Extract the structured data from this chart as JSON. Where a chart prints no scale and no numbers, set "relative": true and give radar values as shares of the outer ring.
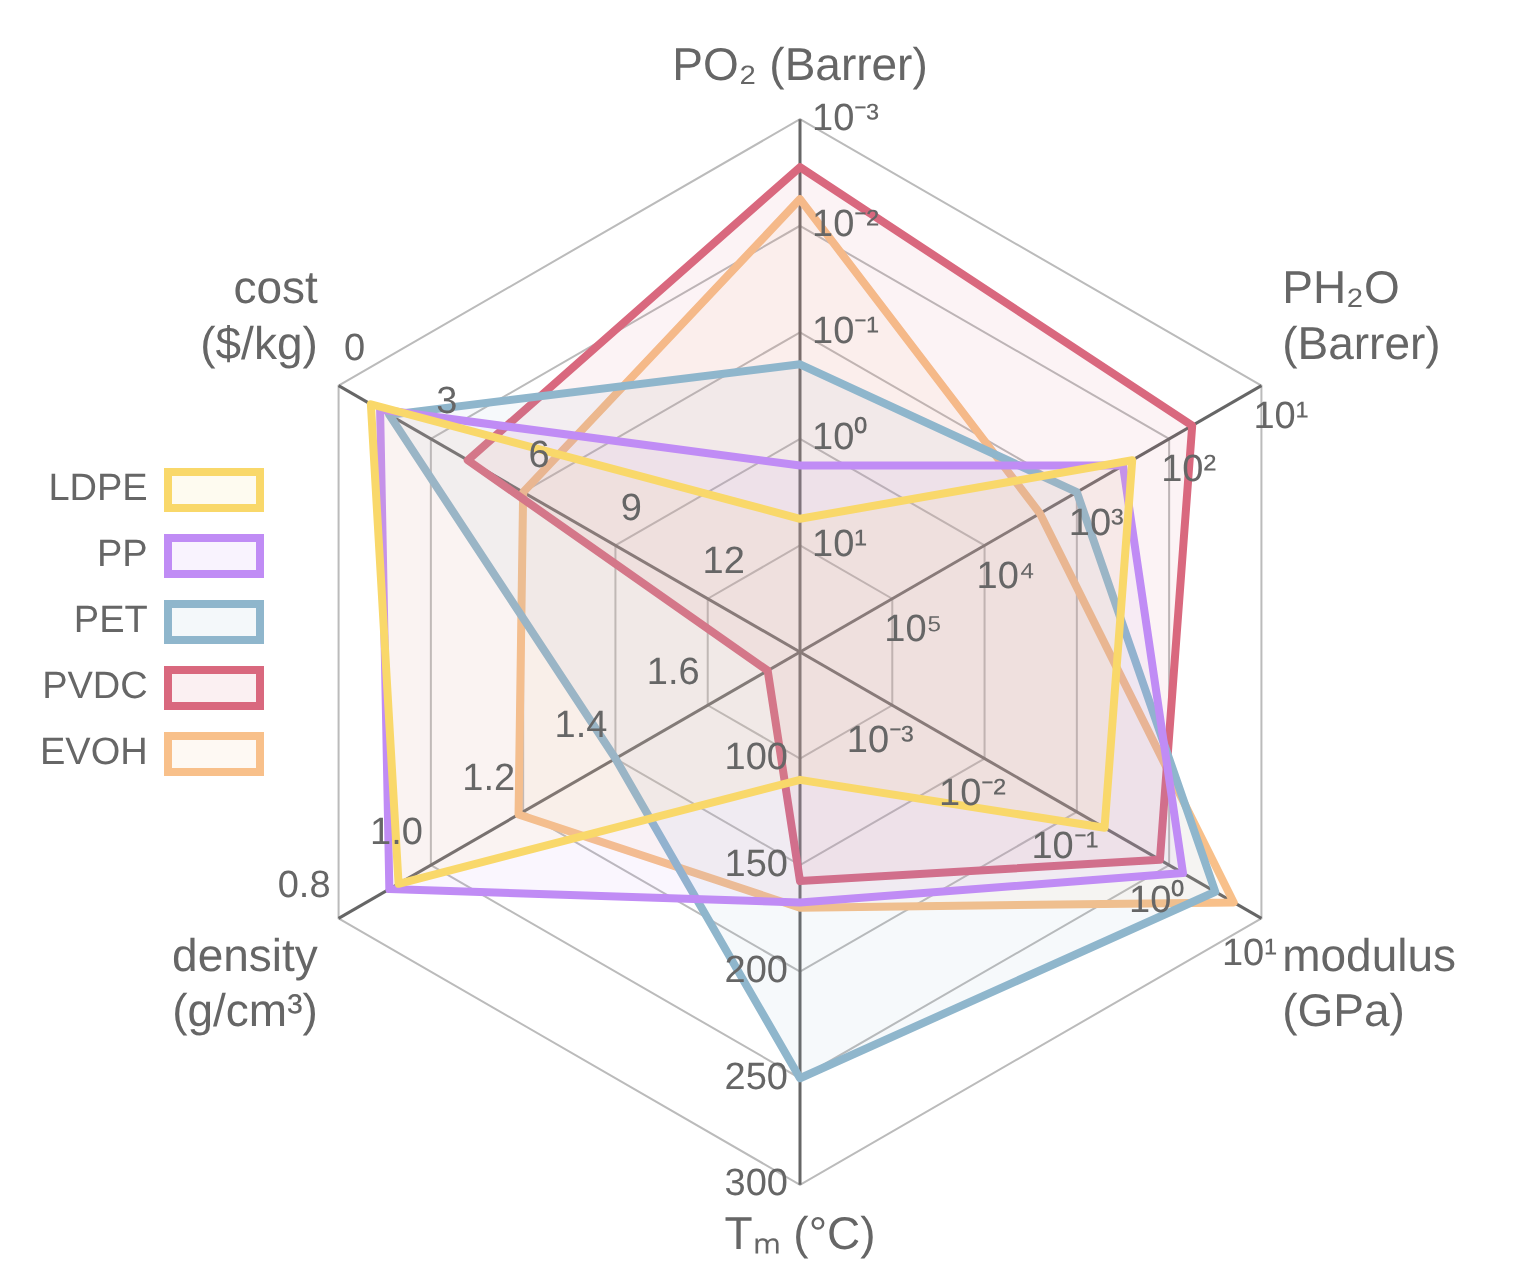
{
  "chart_data": {
    "type": "radar",
    "relative": true,
    "grid": true,
    "legend": "left",
    "categories": [
      "PO₂ (Barrer)",
      "PH₂O\n(Barrer)",
      "modulus\n(GPa)",
      "Tₘ (°C)",
      "density\n(g/cm³)",
      "cost\n($/kg)"
    ],
    "series": [
      {
        "name": "LDPE",
        "color": "#f9d86a",
        "values": [
          0.25,
          0.72,
          0.66,
          0.24,
          0.87,
          0.93
        ]
      },
      {
        "name": "PP",
        "color": "#c08cf5",
        "values": [
          0.35,
          0.7,
          0.83,
          0.47,
          0.89,
          0.91
        ]
      },
      {
        "name": "PET",
        "color": "#8fb6cc",
        "values": [
          0.54,
          0.6,
          0.9,
          0.8,
          0.4,
          0.89
        ]
      },
      {
        "name": "PVDC",
        "color": "#d9687e",
        "values": [
          0.91,
          0.85,
          0.78,
          0.43,
          0.07,
          0.72
        ]
      },
      {
        "name": "EVOH",
        "color": "#f8c08a",
        "values": [
          0.85,
          0.52,
          0.94,
          0.48,
          0.61,
          0.6
        ]
      }
    ],
    "annotations": [
      "10¹",
      "10⁰",
      "10⁻¹",
      "10⁻²",
      "10⁻³",
      "10⁵",
      "10⁴",
      "10³",
      "10²",
      "10¹",
      "10⁻³",
      "10⁻²",
      "10⁻¹",
      "10⁰",
      "10¹",
      "100",
      "150",
      "200",
      "250",
      "300",
      "1.6",
      "1.4",
      "1.2",
      "1.0",
      "0.8",
      "12",
      "9",
      "6",
      "3",
      "0"
    ]
  }
}
